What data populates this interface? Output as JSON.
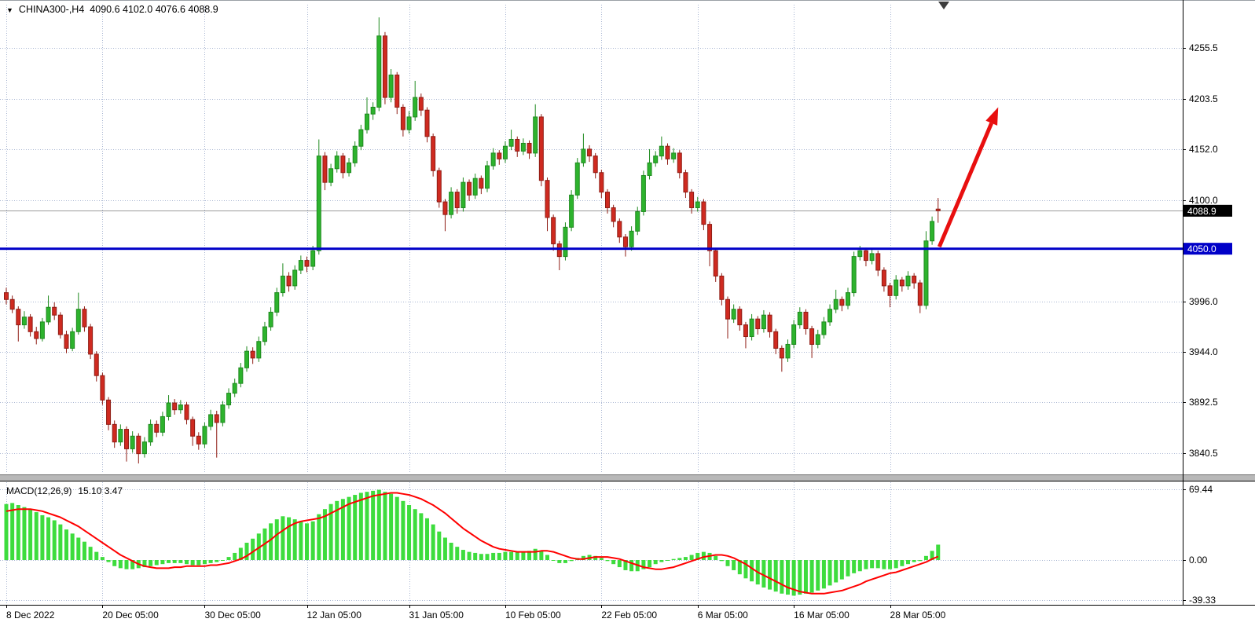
{
  "header": {
    "dropdown_icon": "▼",
    "symbol": "CHINA300-,H4",
    "ohlc_values": "4090.6 4102.0 4076.6 4088.9"
  },
  "price_axis": {
    "current_price_tag": "4088.9",
    "hline_tag": "4050.0"
  },
  "macd_panel": {
    "label": "MACD(12,26,9)",
    "values": "15.10 3.47"
  },
  "colors": {
    "bull": "#2db32d",
    "bull_border": "#1f8a1f",
    "bear": "#cf2a20",
    "bear_border": "#8f1d15",
    "histogram": "#3ddc3d",
    "signal": "#ff0000",
    "hline": "#0000c8",
    "grid": "#a9b6d2",
    "arrow": "#e80f0f",
    "tag_current_bg": "#000000",
    "tag_hline_bg": "#0000c8"
  },
  "chart_data": [
    {
      "type": "candlestick",
      "symbol": "CHINA300-",
      "timeframe": "H4",
      "ohlc_current": {
        "open": 4090.6,
        "high": 4102.0,
        "low": 4076.6,
        "close": 4088.9
      },
      "ylim": [
        3822,
        4300
      ],
      "y_ticks": [
        4255.5,
        4203.5,
        4152.0,
        4100.0,
        3996.0,
        3944.0,
        3892.5,
        3840.5
      ],
      "current_price": 4088.9,
      "hline": {
        "value": 4050.0
      },
      "arrow": {
        "from": {
          "index": 155.2,
          "price": 4052
        },
        "to": {
          "index": 165,
          "price": 4195
        }
      },
      "x_labels": [
        {
          "label": "8 Dec 2022",
          "index": 0
        },
        {
          "label": "20 Dec 05:00",
          "index": 16
        },
        {
          "label": "30 Dec 05:00",
          "index": 33
        },
        {
          "label": "12 Jan 05:00",
          "index": 50
        },
        {
          "label": "31 Jan 05:00",
          "index": 67
        },
        {
          "label": "10 Feb 05:00",
          "index": 83
        },
        {
          "label": "22 Feb 05:00",
          "index": 99
        },
        {
          "label": "6 Mar 05:00",
          "index": 115
        },
        {
          "label": "16 Mar 05:00",
          "index": 131
        },
        {
          "label": "28 Mar 05:00",
          "index": 147
        }
      ],
      "candles": [
        [
          4005,
          4010,
          3993,
          3998
        ],
        [
          3998,
          4002,
          3984,
          3988
        ],
        [
          3988,
          3991,
          3955,
          3972
        ],
        [
          3972,
          3986,
          3968,
          3980
        ],
        [
          3980,
          3983,
          3960,
          3965
        ],
        [
          3965,
          3970,
          3952,
          3958
        ],
        [
          3958,
          3979,
          3955,
          3975
        ],
        [
          3975,
          4002,
          3972,
          3990
        ],
        [
          3990,
          3995,
          3977,
          3982
        ],
        [
          3982,
          3985,
          3958,
          3962
        ],
        [
          3962,
          3966,
          3943,
          3948
        ],
        [
          3948,
          3969,
          3945,
          3965
        ],
        [
          3965,
          4005,
          3962,
          3988
        ],
        [
          3988,
          3991,
          3965,
          3970
        ],
        [
          3970,
          3973,
          3937,
          3942
        ],
        [
          3942,
          3945,
          3914,
          3920
        ],
        [
          3920,
          3923,
          3890,
          3895
        ],
        [
          3895,
          3898,
          3864,
          3870
        ],
        [
          3870,
          3874,
          3846,
          3852
        ],
        [
          3852,
          3870,
          3848,
          3865
        ],
        [
          3865,
          3868,
          3832,
          3845
        ],
        [
          3845,
          3863,
          3841,
          3858
        ],
        [
          3858,
          3861,
          3830,
          3840
        ],
        [
          3840,
          3857,
          3836,
          3852
        ],
        [
          3852,
          3875,
          3848,
          3870
        ],
        [
          3870,
          3874,
          3857,
          3862
        ],
        [
          3862,
          3883,
          3858,
          3878
        ],
        [
          3878,
          3900,
          3874,
          3892
        ],
        [
          3892,
          3896,
          3880,
          3885
        ],
        [
          3885,
          3895,
          3881,
          3890
        ],
        [
          3890,
          3893,
          3870,
          3875
        ],
        [
          3875,
          3878,
          3848,
          3858
        ],
        [
          3858,
          3862,
          3844,
          3850
        ],
        [
          3850,
          3872,
          3846,
          3868
        ],
        [
          3868,
          3885,
          3864,
          3880
        ],
        [
          3880,
          3884,
          3836,
          3872
        ],
        [
          3872,
          3894,
          3868,
          3890
        ],
        [
          3890,
          3907,
          3886,
          3902
        ],
        [
          3902,
          3917,
          3898,
          3912
        ],
        [
          3912,
          3933,
          3908,
          3928
        ],
        [
          3928,
          3950,
          3924,
          3945
        ],
        [
          3945,
          3949,
          3932,
          3938
        ],
        [
          3938,
          3960,
          3934,
          3955
        ],
        [
          3955,
          3975,
          3951,
          3970
        ],
        [
          3970,
          3990,
          3966,
          3985
        ],
        [
          3985,
          4010,
          3981,
          4005
        ],
        [
          4005,
          4035,
          4001,
          4022
        ],
        [
          4022,
          4026,
          4006,
          4012
        ],
        [
          4012,
          4033,
          4008,
          4028
        ],
        [
          4028,
          4043,
          4024,
          4038
        ],
        [
          4038,
          4042,
          4026,
          4032
        ],
        [
          4032,
          4053,
          4028,
          4048
        ],
        [
          4048,
          4162,
          4044,
          4145
        ],
        [
          4145,
          4149,
          4110,
          4118
        ],
        [
          4118,
          4137,
          4114,
          4132
        ],
        [
          4132,
          4150,
          4128,
          4145
        ],
        [
          4145,
          4148,
          4122,
          4128
        ],
        [
          4128,
          4143,
          4124,
          4138
        ],
        [
          4138,
          4160,
          4134,
          4155
        ],
        [
          4155,
          4177,
          4151,
          4172
        ],
        [
          4172,
          4205,
          4168,
          4188
        ],
        [
          4188,
          4200,
          4182,
          4195
        ],
        [
          4195,
          4287,
          4191,
          4268
        ],
        [
          4268,
          4272,
          4198,
          4205
        ],
        [
          4205,
          4234,
          4200,
          4228
        ],
        [
          4228,
          4231,
          4188,
          4195
        ],
        [
          4195,
          4198,
          4165,
          4172
        ],
        [
          4172,
          4191,
          4168,
          4185
        ],
        [
          4185,
          4222,
          4181,
          4205
        ],
        [
          4205,
          4209,
          4186,
          4192
        ],
        [
          4192,
          4195,
          4159,
          4165
        ],
        [
          4165,
          4168,
          4124,
          4130
        ],
        [
          4130,
          4133,
          4092,
          4098
        ],
        [
          4098,
          4101,
          4068,
          4085
        ],
        [
          4085,
          4113,
          4081,
          4108
        ],
        [
          4108,
          4111,
          4086,
          4092
        ],
        [
          4092,
          4123,
          4088,
          4118
        ],
        [
          4118,
          4121,
          4099,
          4105
        ],
        [
          4105,
          4127,
          4101,
          4122
        ],
        [
          4122,
          4125,
          4106,
          4112
        ],
        [
          4112,
          4140,
          4108,
          4135
        ],
        [
          4135,
          4153,
          4131,
          4148
        ],
        [
          4148,
          4151,
          4136,
          4142
        ],
        [
          4142,
          4160,
          4138,
          4155
        ],
        [
          4155,
          4172,
          4151,
          4162
        ],
        [
          4162,
          4165,
          4144,
          4150
        ],
        [
          4150,
          4163,
          4146,
          4158
        ],
        [
          4158,
          4161,
          4142,
          4148
        ],
        [
          4148,
          4198,
          4144,
          4185
        ],
        [
          4185,
          4188,
          4114,
          4120
        ],
        [
          4120,
          4123,
          4068,
          4082
        ],
        [
          4082,
          4085,
          4048,
          4055
        ],
        [
          4055,
          4058,
          4028,
          4042
        ],
        [
          4042,
          4077,
          4038,
          4072
        ],
        [
          4072,
          4110,
          4068,
          4105
        ],
        [
          4105,
          4143,
          4101,
          4138
        ],
        [
          4138,
          4168,
          4134,
          4152
        ],
        [
          4152,
          4156,
          4139,
          4145
        ],
        [
          4145,
          4148,
          4122,
          4128
        ],
        [
          4128,
          4131,
          4102,
          4108
        ],
        [
          4108,
          4111,
          4086,
          4092
        ],
        [
          4092,
          4095,
          4072,
          4078
        ],
        [
          4078,
          4081,
          4056,
          4062
        ],
        [
          4062,
          4065,
          4042,
          4052
        ],
        [
          4052,
          4073,
          4048,
          4068
        ],
        [
          4068,
          4093,
          4064,
          4088
        ],
        [
          4088,
          4130,
          4084,
          4125
        ],
        [
          4125,
          4152,
          4121,
          4138
        ],
        [
          4138,
          4150,
          4134,
          4145
        ],
        [
          4145,
          4165,
          4141,
          4155
        ],
        [
          4155,
          4158,
          4136,
          4142
        ],
        [
          4142,
          4153,
          4138,
          4148
        ],
        [
          4148,
          4151,
          4122,
          4128
        ],
        [
          4128,
          4131,
          4102,
          4108
        ],
        [
          4108,
          4111,
          4086,
          4092
        ],
        [
          4092,
          4103,
          4088,
          4098
        ],
        [
          4098,
          4101,
          4069,
          4075
        ],
        [
          4075,
          4078,
          4032,
          4048
        ],
        [
          4048,
          4051,
          4016,
          4022
        ],
        [
          4022,
          4025,
          3992,
          3998
        ],
        [
          3998,
          4001,
          3958,
          3978
        ],
        [
          3978,
          3993,
          3974,
          3988
        ],
        [
          3988,
          3991,
          3966,
          3972
        ],
        [
          3972,
          3975,
          3948,
          3960
        ],
        [
          3960,
          3983,
          3956,
          3978
        ],
        [
          3978,
          3981,
          3962,
          3968
        ],
        [
          3968,
          3987,
          3964,
          3982
        ],
        [
          3982,
          3985,
          3959,
          3965
        ],
        [
          3965,
          3968,
          3942,
          3948
        ],
        [
          3948,
          3951,
          3924,
          3938
        ],
        [
          3938,
          3957,
          3934,
          3952
        ],
        [
          3952,
          3977,
          3948,
          3972
        ],
        [
          3972,
          3990,
          3968,
          3985
        ],
        [
          3985,
          3988,
          3962,
          3968
        ],
        [
          3968,
          3971,
          3938,
          3952
        ],
        [
          3952,
          3967,
          3948,
          3962
        ],
        [
          3962,
          3980,
          3958,
          3975
        ],
        [
          3975,
          3993,
          3971,
          3988
        ],
        [
          3988,
          4008,
          3984,
          3998
        ],
        [
          3998,
          4001,
          3986,
          3992
        ],
        [
          3992,
          4010,
          3988,
          4005
        ],
        [
          4005,
          4047,
          4001,
          4042
        ],
        [
          4042,
          4053,
          4038,
          4048
        ],
        [
          4048,
          4051,
          4032,
          4038
        ],
        [
          4038,
          4050,
          4034,
          4045
        ],
        [
          4045,
          4048,
          4022,
          4028
        ],
        [
          4028,
          4031,
          4006,
          4012
        ],
        [
          4012,
          4015,
          3990,
          4002
        ],
        [
          4002,
          4023,
          3998,
          4018
        ],
        [
          4018,
          4021,
          4006,
          4012
        ],
        [
          4012,
          4027,
          4008,
          4022
        ],
        [
          4022,
          4025,
          4009,
          4015
        ],
        [
          4015,
          4018,
          3984,
          3992
        ],
        [
          3992,
          4068,
          3988,
          4058
        ],
        [
          4058,
          4083,
          4054,
          4078
        ],
        [
          4090.6,
          4102.0,
          4076.6,
          4088.9
        ]
      ]
    },
    {
      "type": "macd",
      "label": "MACD(12,26,9)",
      "last_values": [
        15.1,
        3.47
      ],
      "y_ticks": [
        69.44,
        0,
        -39.33
      ],
      "hist": [
        55,
        56,
        54,
        52,
        50,
        47,
        44,
        42,
        39,
        35,
        30,
        26,
        22,
        18,
        13,
        8,
        3,
        -2,
        -6,
        -8,
        -9,
        -9,
        -8,
        -7,
        -6,
        -5,
        -4,
        -3,
        -3,
        -3,
        -4,
        -5,
        -5,
        -4,
        -3,
        -2,
        0,
        3,
        7,
        12,
        17,
        21,
        26,
        31,
        36,
        40,
        43,
        42,
        40,
        38,
        36,
        38,
        45,
        50,
        55,
        58,
        60,
        62,
        64,
        66,
        67,
        68,
        69,
        67,
        65,
        62,
        58,
        54,
        50,
        46,
        41,
        35,
        28,
        22,
        17,
        13,
        10,
        8,
        7,
        6,
        6,
        7,
        7,
        8,
        8,
        8,
        8,
        9,
        11,
        9,
        5,
        0,
        -3,
        -3,
        -1,
        2,
        4,
        5,
        4,
        2,
        -1,
        -4,
        -7,
        -10,
        -11,
        -11,
        -9,
        -7,
        -4,
        -2,
        0,
        1,
        2,
        3,
        5,
        7,
        8,
        7,
        4,
        -1,
        -6,
        -10,
        -14,
        -18,
        -21,
        -24,
        -27,
        -29,
        -31,
        -33,
        -34,
        -35,
        -34,
        -33,
        -32,
        -30,
        -28,
        -25,
        -22,
        -19,
        -16,
        -13,
        -11,
        -9,
        -8,
        -8,
        -9,
        -9,
        -8,
        -6,
        -4,
        -2,
        -1,
        4,
        9,
        15.1
      ],
      "signal": [
        48,
        49,
        50,
        50,
        50,
        49,
        48,
        46,
        44,
        42,
        39,
        36,
        33,
        29,
        25,
        21,
        17,
        13,
        9,
        5,
        2,
        -1,
        -4,
        -6,
        -7,
        -8,
        -8,
        -8,
        -7,
        -7,
        -6,
        -6,
        -6,
        -6,
        -5,
        -5,
        -4,
        -3,
        -1,
        1,
        4,
        8,
        12,
        16,
        20,
        25,
        29,
        33,
        36,
        38,
        39,
        40,
        41,
        43,
        46,
        49,
        52,
        55,
        57,
        59,
        61,
        63,
        64,
        65,
        66,
        66,
        65,
        64,
        62,
        60,
        57,
        54,
        50,
        46,
        41,
        36,
        31,
        27,
        23,
        19,
        16,
        13,
        11,
        10,
        9,
        8,
        8,
        8,
        8,
        9,
        9,
        8,
        6,
        4,
        2,
        1,
        1,
        2,
        3,
        3,
        3,
        2,
        1,
        -1,
        -3,
        -5,
        -7,
        -8,
        -9,
        -9,
        -8,
        -7,
        -5,
        -3,
        -1,
        1,
        3,
        4,
        5,
        5,
        4,
        2,
        -1,
        -4,
        -8,
        -12,
        -15,
        -18,
        -21,
        -24,
        -27,
        -29,
        -31,
        -32,
        -33,
        -33,
        -33,
        -32,
        -31,
        -30,
        -28,
        -26,
        -24,
        -21,
        -19,
        -17,
        -15,
        -13,
        -12,
        -10,
        -8,
        -6,
        -4,
        -2,
        1,
        3.47
      ]
    }
  ]
}
